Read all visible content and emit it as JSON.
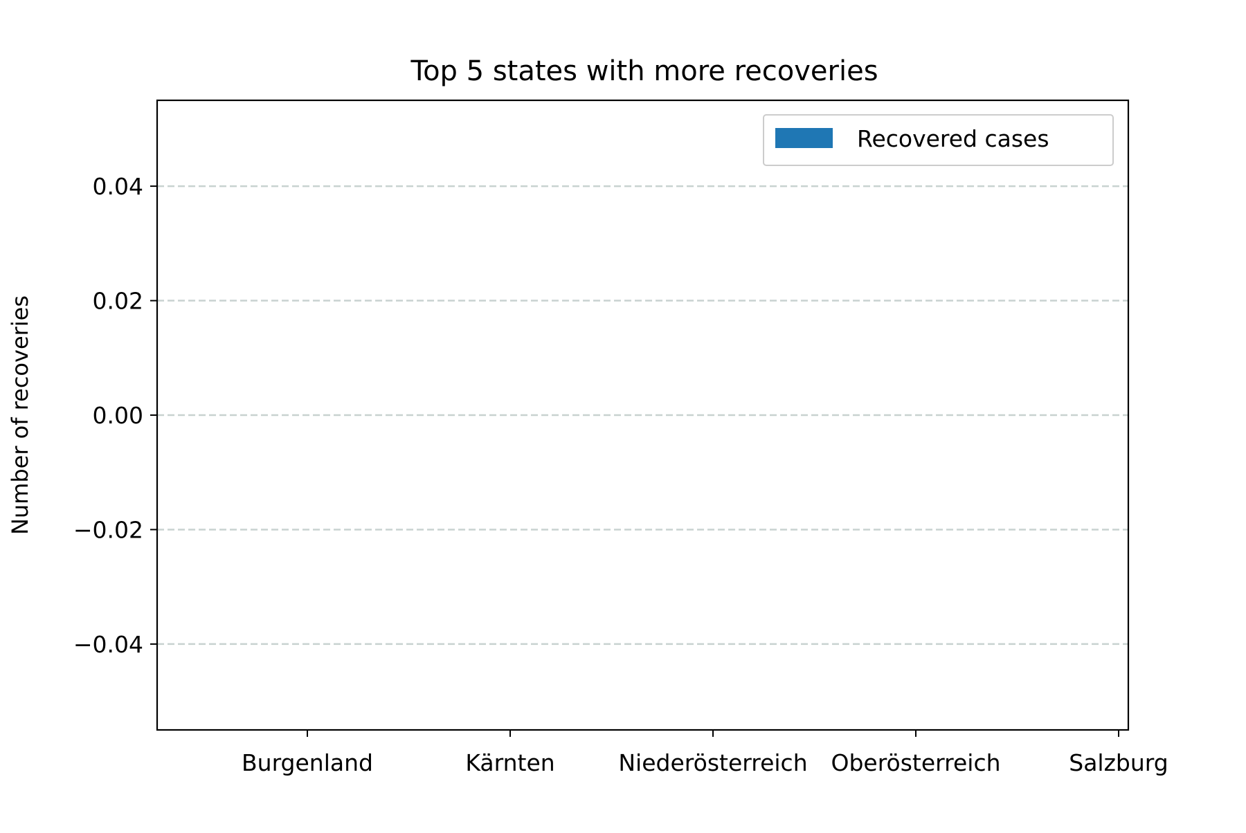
{
  "chart_data": {
    "type": "bar",
    "title": "Top 5 states with more recoveries",
    "xlabel": "",
    "ylabel": "Number of recoveries",
    "categories": [
      "Burgenland",
      "Kärnten",
      "Niederösterreich",
      "Oberösterreich",
      "Salzburg"
    ],
    "series": [
      {
        "name": "Recovered cases",
        "values": [
          0,
          0,
          0,
          0,
          0
        ],
        "color": "#1f77b4"
      }
    ],
    "ylim": [
      -0.055,
      0.055
    ],
    "yticks": [
      0.04,
      0.02,
      0.0,
      -0.02,
      -0.04
    ],
    "ytick_labels": [
      "0.04",
      "0.02",
      "0.00",
      "−0.02",
      "−0.04"
    ],
    "grid": {
      "axis": "y",
      "style": "dashed",
      "color": "#c8d2d0"
    },
    "legend": {
      "position": "top-right"
    }
  }
}
